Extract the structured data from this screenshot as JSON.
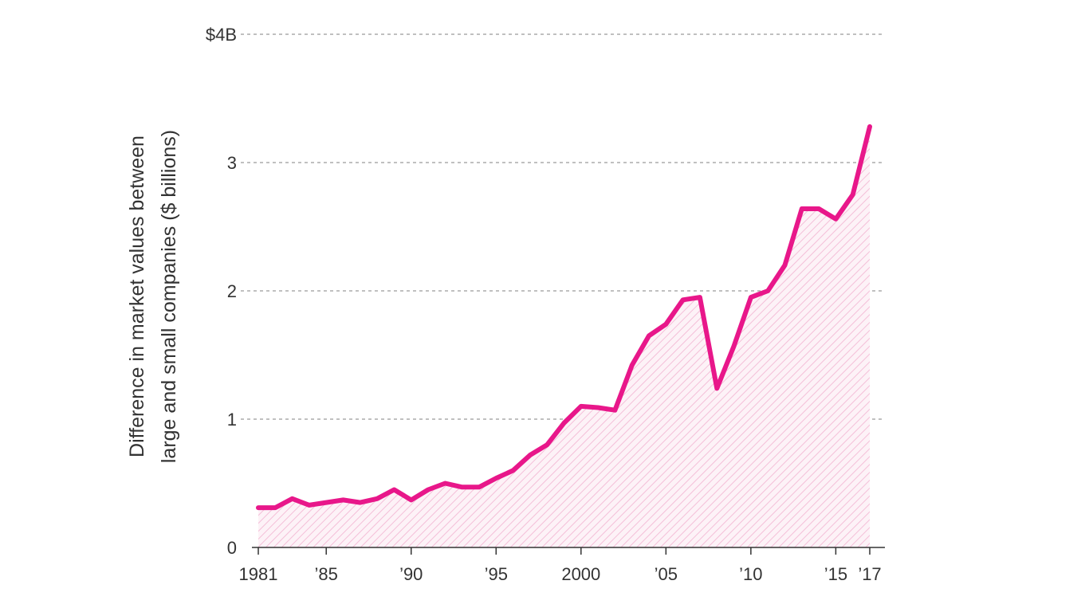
{
  "chart_data": {
    "type": "area",
    "title": "",
    "ylabel_line1": "Difference in market values between",
    "ylabel_line2": "large and small companies ($ billions)",
    "xlabel": "",
    "ylim": [
      0,
      4
    ],
    "xlim": [
      1981,
      2017
    ],
    "grid": true,
    "y_ticks": [
      {
        "value": 0,
        "label": "0"
      },
      {
        "value": 1,
        "label": "1"
      },
      {
        "value": 2,
        "label": "2"
      },
      {
        "value": 3,
        "label": "3"
      },
      {
        "value": 4,
        "label": "$4B"
      }
    ],
    "x_ticks": [
      {
        "value": 1981,
        "label": "1981"
      },
      {
        "value": 1985,
        "label": "’85"
      },
      {
        "value": 1990,
        "label": "’90"
      },
      {
        "value": 1995,
        "label": "’95"
      },
      {
        "value": 2000,
        "label": "2000"
      },
      {
        "value": 2005,
        "label": "’05"
      },
      {
        "value": 2010,
        "label": "’10"
      },
      {
        "value": 2015,
        "label": "’15"
      },
      {
        "value": 2017,
        "label": "’17"
      }
    ],
    "line_color": "#e8178a",
    "fill_color": "#f6c6dd",
    "series": [
      {
        "x": [
          1981,
          1982,
          1983,
          1984,
          1985,
          1986,
          1987,
          1988,
          1989,
          1990,
          1991,
          1992,
          1993,
          1994,
          1995,
          1996,
          1997,
          1998,
          1999,
          2000,
          2001,
          2002,
          2003,
          2004,
          2005,
          2006,
          2007,
          2008,
          2009,
          2010,
          2011,
          2012,
          2013,
          2014,
          2015,
          2016,
          2017
        ],
        "values": [
          0.31,
          0.31,
          0.38,
          0.33,
          0.35,
          0.37,
          0.35,
          0.38,
          0.45,
          0.37,
          0.45,
          0.5,
          0.47,
          0.47,
          0.54,
          0.6,
          0.72,
          0.8,
          0.97,
          1.1,
          1.09,
          1.07,
          1.42,
          1.65,
          1.74,
          1.93,
          1.95,
          1.24,
          1.57,
          1.95,
          2.0,
          2.2,
          2.64,
          2.64,
          2.56,
          2.75,
          3.28
        ]
      }
    ]
  }
}
